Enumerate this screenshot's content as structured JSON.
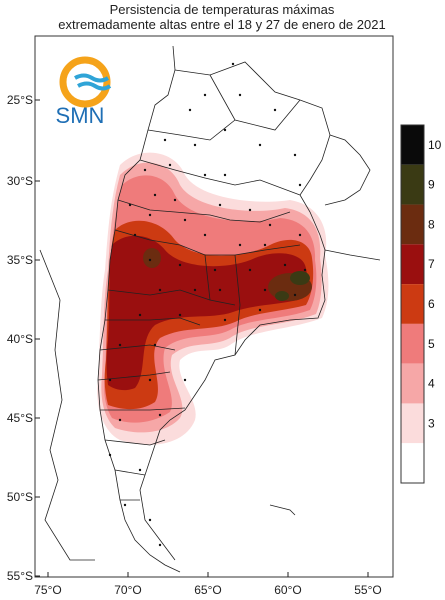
{
  "map": {
    "title_line1": "Persistencia de temperaturas máximas",
    "title_line2": "extremadamente altas entre el 18 y 27 de enero de 2021",
    "logo_text": "SMN",
    "lat_labels": [
      "25°S",
      "30°S",
      "35°S",
      "40°S",
      "45°S",
      "50°S",
      "55°S"
    ],
    "lon_labels": [
      "75°O",
      "70°O",
      "65°O",
      "60°O",
      "55°O"
    ],
    "colorbar": {
      "labels": [
        "10",
        "9",
        "8",
        "7",
        "6",
        "5",
        "4",
        "3"
      ],
      "colors": [
        "#0a0a0a",
        "#3a3a14",
        "#6b2c10",
        "#9a0f0f",
        "#cc3a12",
        "#ef7b7b",
        "#f6a7a7",
        "#fbdcdc",
        "#ffffff"
      ]
    }
  }
}
